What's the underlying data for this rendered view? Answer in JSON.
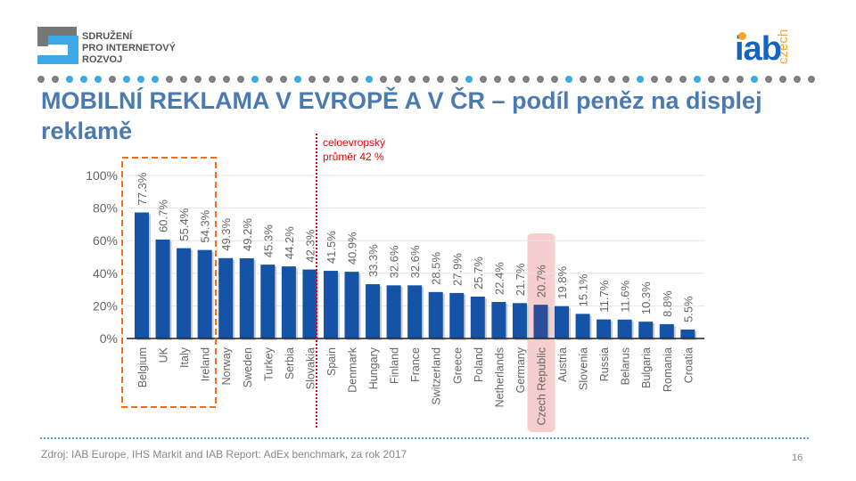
{
  "header": {
    "logo_left_lines": [
      "SDRUŽENÍ",
      "PRO INTERNETOVÝ",
      "ROZVOJ"
    ],
    "logo_right_main": "iab",
    "logo_right_suffix": "czech",
    "title": "MOBILNÍ REKLAMA V EVROPĚ A V ČR – podíl peněz na displej reklamě"
  },
  "annotation": {
    "line1": "celoevropský",
    "line2": "průměr 42 %"
  },
  "footer": {
    "source": "Zdroj: IAB Europe, IHS Markit and IAB Report: AdEx benchmark, za rok 2017",
    "page": "16"
  },
  "colors": {
    "bar": "#1553a6",
    "title": "#4a7ab0",
    "highlight": "#f4c2c2",
    "box": "#ff6a1a",
    "average_line": "#e00000",
    "dot_gray": "#808080",
    "dot_blue": "#3fa9e8"
  },
  "chart_data": {
    "type": "bar",
    "ylim": [
      0,
      100
    ],
    "yticks": [
      "0%",
      "20%",
      "40%",
      "60%",
      "80%",
      "100%"
    ],
    "grid": true,
    "categories": [
      "Belgium",
      "UK",
      "Italy",
      "Ireland",
      "Norway",
      "Sweden",
      "Turkey",
      "Serbia",
      "Slovakia",
      "Spain",
      "Denmark",
      "Hungary",
      "Finland",
      "France",
      "Switzerland",
      "Greece",
      "Poland",
      "Netherlands",
      "Germany",
      "Czech Republic",
      "Austria",
      "Slovenia",
      "Russia",
      "Belarus",
      "Bulgaria",
      "Romania",
      "Croatia"
    ],
    "values": [
      77.3,
      60.7,
      55.4,
      54.3,
      49.3,
      49.2,
      45.3,
      44.2,
      42.3,
      41.5,
      40.9,
      33.3,
      32.6,
      32.6,
      28.5,
      27.9,
      25.7,
      22.4,
      21.7,
      20.7,
      19.8,
      15.1,
      11.7,
      11.6,
      10.3,
      8.8,
      5.5
    ],
    "labels": [
      "77.3%",
      "60.7%",
      "55.4%",
      "54.3%",
      "49.3%",
      "49.2%",
      "45.3%",
      "44.2%",
      "42.3%",
      "41.5%",
      "40.9%",
      "33.3%",
      "32.6%",
      "32.6%",
      "28.5%",
      "27.9%",
      "25.7%",
      "22.4%",
      "21.7%",
      "20.7%",
      "19.8%",
      "15.1%",
      "11.7%",
      "11.6%",
      "10.3%",
      "8.8%",
      "5.5%"
    ],
    "highlighted": "Czech Republic",
    "boxed": [
      "Belgium",
      "UK",
      "Italy",
      "Ireland"
    ],
    "average": 42
  }
}
